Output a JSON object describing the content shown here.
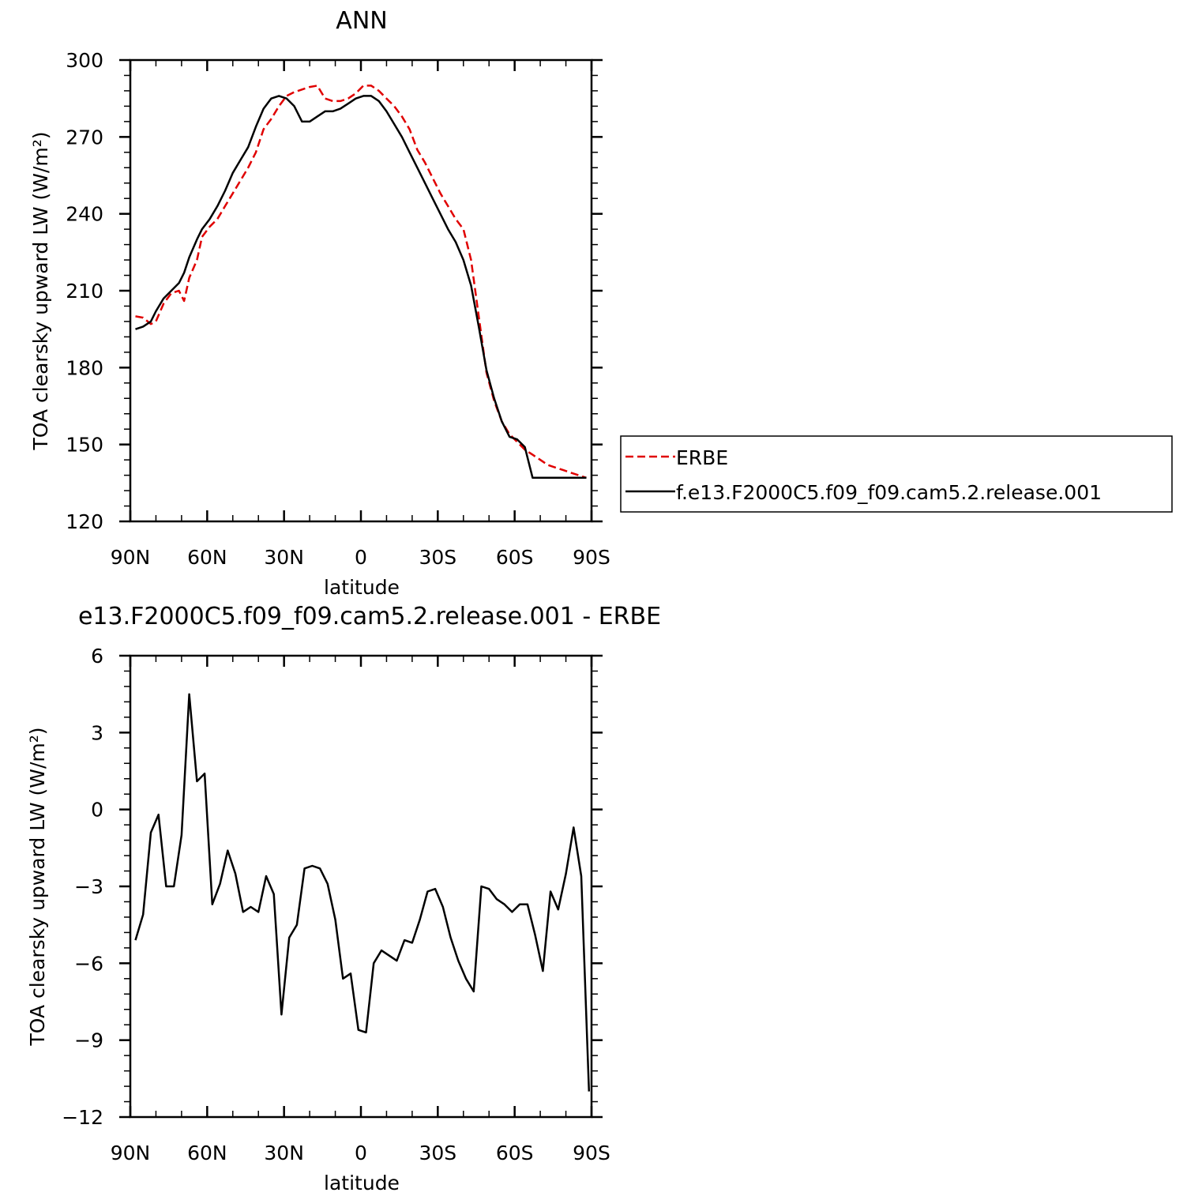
{
  "chart_data": [
    {
      "type": "line",
      "title": "ANN",
      "xlabel": "latitude",
      "ylabel": "TOA clearsky upward LW (W/m²)",
      "xlim": [
        90,
        -90
      ],
      "ylim": [
        120,
        300
      ],
      "xticks": [
        90,
        60,
        30,
        0,
        -30,
        -60,
        -90
      ],
      "xtick_labels": [
        "90N",
        "60N",
        "30N",
        "0",
        "30S",
        "60S",
        "90S"
      ],
      "yticks": [
        120,
        150,
        180,
        210,
        240,
        270,
        300
      ],
      "ytick_labels": [
        "120",
        "150",
        "180",
        "210",
        "240",
        "270",
        "300"
      ],
      "grid": false,
      "legend": {
        "placement": "right",
        "entries": [
          "ERBE",
          "f.e13.F2000C5.f09_f09.cam5.2.release.001"
        ]
      },
      "series": [
        {
          "name": "ERBE",
          "color": "#e00000",
          "style": "dashed",
          "x": [
            88,
            85,
            82,
            80,
            77,
            74,
            71,
            69,
            67,
            64,
            62,
            59,
            56,
            53,
            50,
            47,
            44,
            41,
            38,
            35,
            32,
            29,
            26,
            23,
            20,
            17,
            14,
            11,
            8,
            5,
            2,
            -1,
            -4,
            -7,
            -10,
            -13,
            -16,
            -19,
            -22,
            -25,
            -28,
            -31,
            -34,
            -37,
            -40,
            -43,
            -46,
            -49,
            -52,
            -55,
            -58,
            -61,
            -64,
            -67,
            -70,
            -73,
            -76,
            -79,
            -82,
            -85,
            -88
          ],
          "y": [
            200,
            199.5,
            197,
            198,
            205,
            209,
            210,
            206,
            215,
            222,
            231,
            235,
            238,
            243,
            248,
            253,
            258,
            264,
            273,
            277,
            282,
            286,
            287.5,
            288.5,
            289.5,
            290,
            285,
            284,
            284,
            285,
            287,
            290,
            290,
            288,
            285,
            282,
            278,
            273,
            265,
            260,
            254,
            248,
            243,
            238,
            234,
            222,
            200,
            178,
            167,
            159,
            154,
            151,
            148,
            146,
            144,
            142,
            141,
            140,
            139,
            138,
            137
          ]
        },
        {
          "name": "f.e13.F2000C5.f09_f09.cam5.2.release.001",
          "color": "#000000",
          "style": "solid",
          "x": [
            88,
            85,
            82,
            80,
            77,
            74,
            71,
            69,
            67,
            64,
            62,
            59,
            56,
            53,
            50,
            47,
            44,
            41,
            38,
            35,
            32,
            29,
            26,
            23,
            20,
            17,
            14,
            11,
            8,
            5,
            2,
            -1,
            -4,
            -7,
            -10,
            -13,
            -16,
            -19,
            -22,
            -25,
            -28,
            -31,
            -34,
            -37,
            -40,
            -43,
            -46,
            -49,
            -52,
            -55,
            -58,
            -61,
            -64,
            -67,
            -70,
            -73,
            -76,
            -79,
            -82,
            -85,
            -88
          ],
          "y": [
            195,
            196,
            198,
            202,
            207,
            210,
            213,
            217,
            223,
            230,
            234,
            238,
            243,
            249,
            256,
            261,
            266,
            274,
            281,
            285,
            286,
            285,
            282,
            276,
            276,
            278,
            280,
            280,
            281,
            283,
            285,
            286,
            286,
            284,
            280,
            275,
            270,
            264,
            258,
            252,
            246,
            240,
            234,
            229,
            222,
            212,
            196,
            179,
            168,
            159,
            153,
            152,
            149,
            137,
            137,
            137,
            137,
            137,
            137,
            137,
            137
          ]
        }
      ]
    },
    {
      "type": "line",
      "title": "e13.F2000C5.f09_f09.cam5.2.release.001 - ERBE",
      "xlabel": "latitude",
      "ylabel": "TOA clearsky upward LW (W/m²)",
      "xlim": [
        90,
        -90
      ],
      "ylim": [
        -12,
        6
      ],
      "xticks": [
        90,
        60,
        30,
        0,
        -30,
        -60,
        -90
      ],
      "xtick_labels": [
        "90N",
        "60N",
        "30N",
        "0",
        "30S",
        "60S",
        "90S"
      ],
      "yticks": [
        -12,
        -9,
        -6,
        -3,
        0,
        3,
        6
      ],
      "ytick_labels": [
        "−12",
        "−9",
        "−6",
        "−3",
        "0",
        "3",
        "6"
      ],
      "grid": false,
      "series": [
        {
          "color": "#000000",
          "style": "solid",
          "x": [
            88,
            85,
            82,
            79,
            76,
            73,
            70,
            67,
            64,
            61,
            58,
            55,
            52,
            49,
            46,
            43,
            40,
            37,
            34,
            31,
            28,
            25,
            22,
            19,
            16,
            13,
            10,
            7,
            4,
            1,
            -2,
            -5,
            -8,
            -11,
            -14,
            -17,
            -20,
            -23,
            -26,
            -29,
            -32,
            -35,
            -38,
            -41,
            -44,
            -47,
            -50,
            -53,
            -56,
            -59,
            -62,
            -65,
            -68,
            -71,
            -74,
            -77,
            -80,
            -83,
            -86,
            -89
          ],
          "y": [
            -5.1,
            -4.1,
            -0.9,
            -0.2,
            -3,
            -3,
            -1,
            4.5,
            1.1,
            1.4,
            -3.7,
            -2.9,
            -1.6,
            -2.5,
            -4,
            -3.8,
            -4,
            -2.6,
            -3.3,
            -8,
            -5,
            -4.5,
            -2.3,
            -2.2,
            -2.3,
            -2.9,
            -4.3,
            -6.6,
            -6.4,
            -8.6,
            -8.7,
            -6,
            -5.5,
            -5.7,
            -5.9,
            -5.1,
            -5.2,
            -4.3,
            -3.2,
            -3.1,
            -3.8,
            -5,
            -5.9,
            -6.6,
            -7.1,
            -3,
            -3.1,
            -3.5,
            -3.7,
            -4,
            -3.7,
            -3.7,
            -4.9,
            -6.3,
            -3.2,
            -3.9,
            -2.5,
            -0.7,
            -2.6,
            -11
          ]
        }
      ]
    }
  ]
}
